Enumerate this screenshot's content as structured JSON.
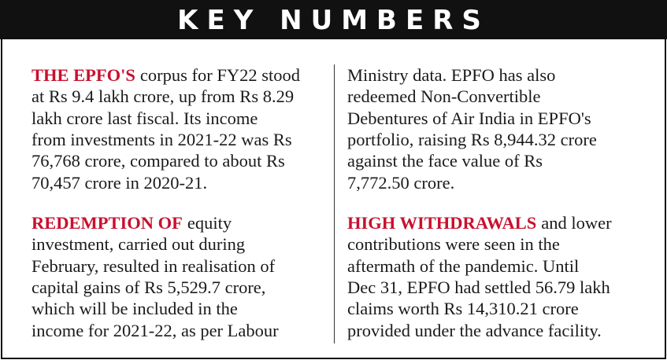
{
  "header": {
    "title": "KEY NUMBERS"
  },
  "columns": [
    {
      "blocks": [
        {
          "lead": "THE EPFO'S",
          "lines": [
            "corpus for FY22 stood",
            "at Rs 9.4 lakh crore, up from Rs 8.29",
            "lakh crore last fiscal. Its income",
            "from investments in 2021-22 was Rs",
            "76,768 crore, compared to about Rs",
            "70,457 crore in 2020-21."
          ]
        },
        {
          "lead": "REDEMPTION OF",
          "lines": [
            "equity",
            "investment, carried out during",
            "February, resulted in realisation of",
            "capital gains of Rs 5,529.7 crore,",
            "which will be included in the",
            "income for 2021-22, as per Labour"
          ]
        }
      ]
    },
    {
      "blocks": [
        {
          "lines": [
            "Ministry data. EPFO has also",
            "redeemed Non-Convertible",
            "Debentures of Air India in EPFO's",
            "portfolio, raising Rs 8,944.32 crore",
            "against the face value of Rs",
            "7,772.50 crore."
          ]
        },
        {
          "lead": "HIGH WITHDRAWALS",
          "lines": [
            "and lower",
            "contributions were seen in the",
            "aftermath of the pandemic. Until",
            "Dec 31, EPFO had settled 56.79 lakh",
            "claims worth Rs 14,310.21 crore",
            "provided under the advance facility."
          ]
        }
      ]
    }
  ]
}
